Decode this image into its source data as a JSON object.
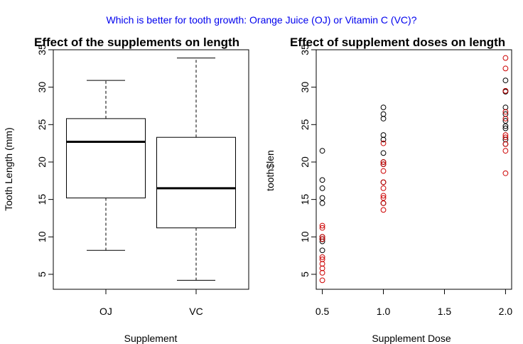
{
  "suptitle": "Which is better for tooth growth: Orange Juice (OJ) or Vitamin C (VC)?",
  "colors": {
    "suptitle": "#0000ee",
    "oj": "#000000",
    "vc": "#cc0000",
    "axis": "#000000"
  },
  "chart_data": [
    {
      "type": "box",
      "title": "Effect of the supplements on length",
      "xlabel": "Supplement",
      "ylabel": "Tooth Length (mm)",
      "categories": [
        "OJ",
        "VC"
      ],
      "ylim": [
        3,
        35
      ],
      "yticks": [
        5,
        10,
        15,
        20,
        25,
        30,
        35
      ],
      "boxes": [
        {
          "name": "OJ",
          "min": 8.2,
          "q1": 15.2,
          "median": 22.7,
          "q3": 25.8,
          "max": 30.9
        },
        {
          "name": "VC",
          "min": 4.2,
          "q1": 11.2,
          "median": 16.5,
          "q3": 23.3,
          "max": 33.9
        }
      ]
    },
    {
      "type": "scatter",
      "title": "Effect of supplement doses on length",
      "xlabel": "Supplement Dose",
      "ylabel": "tooth$len",
      "xlim": [
        0.45,
        2.05
      ],
      "ylim": [
        3,
        35
      ],
      "xticks": [
        0.5,
        1.0,
        1.5,
        2.0
      ],
      "xtick_labels": [
        "0.5",
        "1.0",
        "1.5",
        "2.0"
      ],
      "yticks": [
        5,
        10,
        15,
        20,
        25,
        30,
        35
      ],
      "series": [
        {
          "name": "OJ",
          "color": "#000000",
          "points": [
            [
              0.5,
              21.5
            ],
            [
              0.5,
              17.6
            ],
            [
              0.5,
              16.5
            ],
            [
              0.5,
              15.2
            ],
            [
              0.5,
              14.5
            ],
            [
              0.5,
              9.7
            ],
            [
              0.5,
              10.0
            ],
            [
              0.5,
              9.4
            ],
            [
              0.5,
              8.2
            ],
            [
              0.5,
              9.7
            ],
            [
              1.0,
              27.3
            ],
            [
              1.0,
              26.4
            ],
            [
              1.0,
              25.8
            ],
            [
              1.0,
              23.6
            ],
            [
              1.0,
              23.0
            ],
            [
              1.0,
              21.2
            ],
            [
              1.0,
              20.0
            ],
            [
              1.0,
              19.7
            ],
            [
              1.0,
              17.3
            ],
            [
              1.0,
              14.5
            ],
            [
              2.0,
              30.9
            ],
            [
              2.0,
              29.5
            ],
            [
              2.0,
              29.4
            ],
            [
              2.0,
              27.3
            ],
            [
              2.0,
              26.4
            ],
            [
              2.0,
              25.5
            ],
            [
              2.0,
              24.8
            ],
            [
              2.0,
              24.5
            ],
            [
              2.0,
              23.0
            ],
            [
              2.0,
              22.4
            ]
          ]
        },
        {
          "name": "VC",
          "color": "#cc0000",
          "points": [
            [
              0.5,
              11.5
            ],
            [
              0.5,
              11.2
            ],
            [
              0.5,
              10.0
            ],
            [
              0.5,
              7.3
            ],
            [
              0.5,
              7.0
            ],
            [
              0.5,
              6.4
            ],
            [
              0.5,
              5.8
            ],
            [
              0.5,
              5.2
            ],
            [
              0.5,
              4.2
            ],
            [
              0.5,
              9.7
            ],
            [
              1.0,
              22.5
            ],
            [
              1.0,
              18.8
            ],
            [
              1.0,
              17.3
            ],
            [
              1.0,
              16.5
            ],
            [
              1.0,
              15.5
            ],
            [
              1.0,
              15.2
            ],
            [
              1.0,
              14.5
            ],
            [
              1.0,
              13.6
            ],
            [
              1.0,
              19.7
            ],
            [
              1.0,
              20.0
            ],
            [
              2.0,
              33.9
            ],
            [
              2.0,
              32.5
            ],
            [
              2.0,
              29.5
            ],
            [
              2.0,
              26.7
            ],
            [
              2.0,
              25.8
            ],
            [
              2.0,
              23.6
            ],
            [
              2.0,
              23.3
            ],
            [
              2.0,
              22.4
            ],
            [
              2.0,
              21.5
            ],
            [
              2.0,
              18.5
            ]
          ]
        }
      ]
    }
  ]
}
